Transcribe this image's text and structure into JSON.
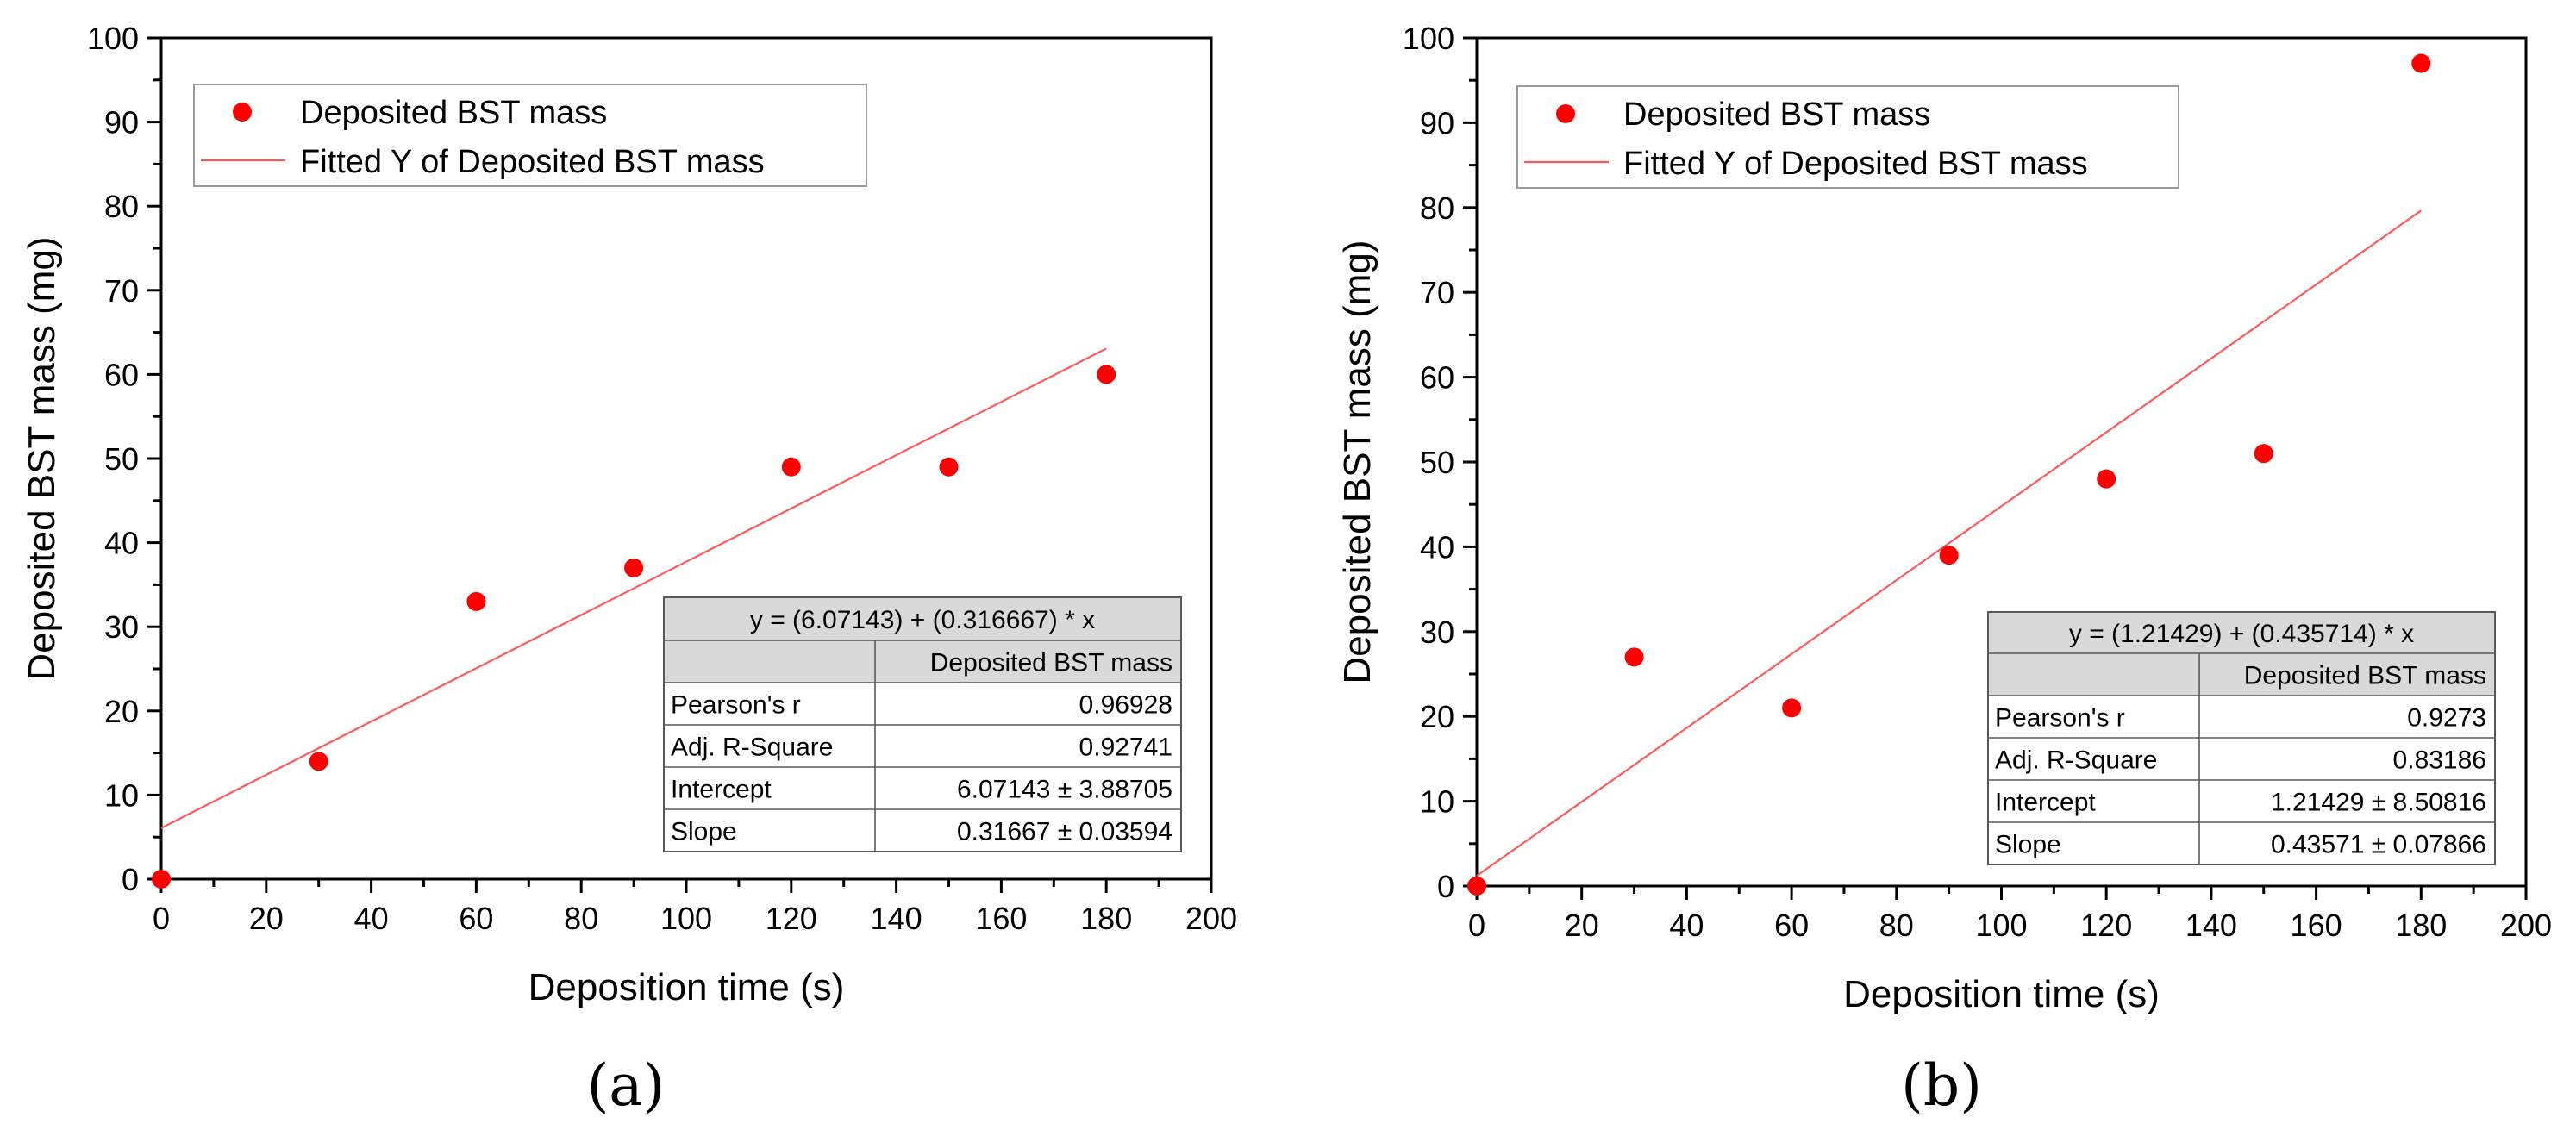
{
  "colors": {
    "marker": "#ff0000",
    "fit_line": "#ff5a5a",
    "axis": "#000000",
    "table_header_bg": "#d9d9d9",
    "table_border": "#595959",
    "background": "#ffffff"
  },
  "chart_data": [
    {
      "type": "scatter",
      "panel_label": "(a)",
      "title": "",
      "xlabel": "Deposition time (s)",
      "ylabel": "Deposited BST mass (mg)",
      "xlim": [
        0,
        200
      ],
      "ylim": [
        0,
        100
      ],
      "xticks": [
        0,
        20,
        40,
        60,
        80,
        100,
        120,
        140,
        160,
        180,
        200
      ],
      "yticks": [
        0,
        10,
        20,
        30,
        40,
        50,
        60,
        70,
        80,
        90,
        100
      ],
      "xticks_labels": [
        "0",
        "20",
        "40",
        "60",
        "80",
        "100",
        "120",
        "140",
        "160",
        "180",
        "200"
      ],
      "yticks_labels": [
        "0",
        "10",
        "20",
        "30",
        "40",
        "50",
        "60",
        "70",
        "80",
        "90",
        "100"
      ],
      "grid": false,
      "legend_position": "top-left",
      "series": [
        {
          "name": "Deposited BST mass",
          "kind": "scatter",
          "x": [
            0,
            30,
            60,
            90,
            120,
            150,
            180
          ],
          "y": [
            0,
            14,
            33,
            37,
            49,
            49,
            60
          ]
        },
        {
          "name": "Fitted Y of Deposited BST mass",
          "kind": "line",
          "x": [
            0,
            180
          ],
          "intercept": 6.07143,
          "slope": 0.316667
        }
      ],
      "fit_table": {
        "equation": "y = (6.07143) + (0.316667) * x",
        "header": [
          "",
          "Deposited BST mass"
        ],
        "rows": [
          [
            "Pearson's r",
            "0.96928"
          ],
          [
            "Adj. R-Square",
            "0.92741"
          ],
          [
            "Intercept",
            "6.07143 ± 3.88705"
          ],
          [
            "Slope",
            "0.31667 ± 0.03594"
          ]
        ]
      }
    },
    {
      "type": "scatter",
      "panel_label": "(b)",
      "title": "",
      "xlabel": "Deposition time (s)",
      "ylabel": "Deposited BST mass (mg)",
      "xlim": [
        0,
        200
      ],
      "ylim": [
        0,
        100
      ],
      "xticks": [
        0,
        20,
        40,
        60,
        80,
        100,
        120,
        140,
        160,
        180,
        200
      ],
      "yticks": [
        0,
        10,
        20,
        30,
        40,
        50,
        60,
        70,
        80,
        90,
        100
      ],
      "xticks_labels": [
        "0",
        "20",
        "40",
        "60",
        "80",
        "100",
        "120",
        "140",
        "160",
        "180",
        "200"
      ],
      "yticks_labels": [
        "0",
        "10",
        "20",
        "30",
        "40",
        "50",
        "60",
        "70",
        "80",
        "90",
        "100"
      ],
      "grid": false,
      "legend_position": "top-left",
      "series": [
        {
          "name": "Deposited BST mass",
          "kind": "scatter",
          "x": [
            0,
            30,
            60,
            90,
            120,
            150,
            180
          ],
          "y": [
            0,
            27,
            21,
            39,
            48,
            51,
            97
          ]
        },
        {
          "name": "Fitted Y of Deposited BST mass",
          "kind": "line",
          "x": [
            0,
            180
          ],
          "intercept": 1.21429,
          "slope": 0.435714
        }
      ],
      "fit_table": {
        "equation": "y = (1.21429) + (0.435714) * x",
        "header": [
          "",
          "Deposited BST mass"
        ],
        "rows": [
          [
            "Pearson's r",
            "0.9273"
          ],
          [
            "Adj. R-Square",
            "0.83186"
          ],
          [
            "Intercept",
            "1.21429 ± 8.50816"
          ],
          [
            "Slope",
            "0.43571 ± 0.07866"
          ]
        ]
      }
    }
  ]
}
